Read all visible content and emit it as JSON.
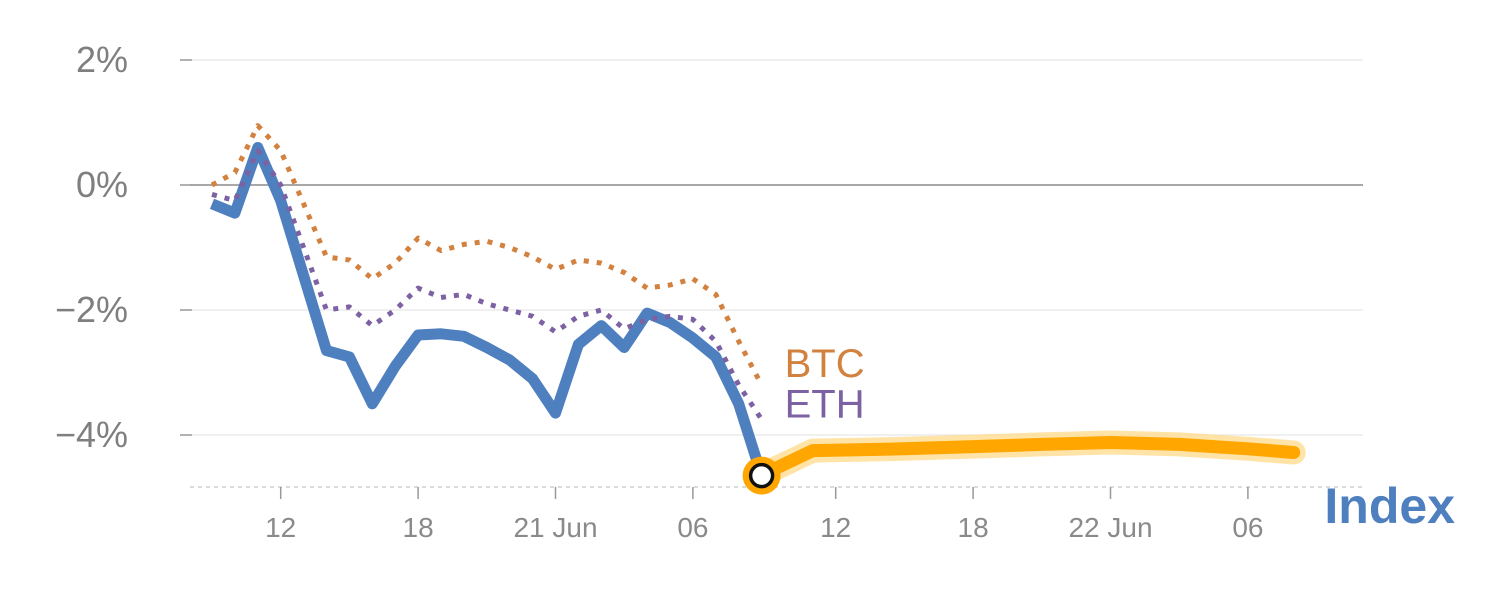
{
  "chart_data": {
    "type": "line",
    "title": "",
    "xlabel": "",
    "ylabel": "",
    "ylim": [
      -4.8,
      2.0
    ],
    "y_ticks": [
      {
        "value": 2,
        "label": "2%"
      },
      {
        "value": 0,
        "label": "0%"
      },
      {
        "value": -2,
        "label": "−2%"
      },
      {
        "value": -4,
        "label": "−4%"
      }
    ],
    "x_ticks": [
      {
        "label": "12",
        "segment": "past",
        "day": 3
      },
      {
        "label": "18",
        "segment": "past",
        "day": 9
      },
      {
        "label": "21 Jun",
        "segment": "past",
        "day": 15
      },
      {
        "label": "06",
        "segment": "past",
        "day": 21
      },
      {
        "label": "12",
        "segment": "forecast",
        "day": 3
      },
      {
        "label": "18",
        "segment": "forecast",
        "day": 9
      },
      {
        "label": "22 Jun",
        "segment": "forecast",
        "day": 15
      },
      {
        "label": "06",
        "segment": "forecast",
        "day": 21
      }
    ],
    "grid": true,
    "zero_line": true,
    "colors": {
      "Index": "#4e7fbf",
      "BTC": "#d2813f",
      "ETH": "#7d62a3",
      "forecast": "#ffa600",
      "forecast_band": "#ffd98a",
      "grid": "#e6e6e6",
      "zero": "#8c8c8c"
    },
    "series": [
      {
        "name": "Index",
        "label": "Index",
        "segment": "past",
        "style": "solid",
        "points": [
          [
            0,
            -0.3
          ],
          [
            1,
            -0.45
          ],
          [
            2,
            0.6
          ],
          [
            3,
            -0.25
          ],
          [
            4,
            -1.45
          ],
          [
            5,
            -2.65
          ],
          [
            6,
            -2.75
          ],
          [
            7,
            -3.5
          ],
          [
            8,
            -2.9
          ],
          [
            9,
            -2.4
          ],
          [
            10,
            -2.38
          ],
          [
            11,
            -2.42
          ],
          [
            12,
            -2.6
          ],
          [
            13,
            -2.8
          ],
          [
            14,
            -3.1
          ],
          [
            15,
            -3.65
          ],
          [
            16,
            -2.55
          ],
          [
            17,
            -2.25
          ],
          [
            18,
            -2.6
          ],
          [
            19,
            -2.05
          ],
          [
            20,
            -2.2
          ],
          [
            21,
            -2.45
          ],
          [
            22,
            -2.75
          ],
          [
            23,
            -3.5
          ],
          [
            24,
            -4.65
          ]
        ]
      },
      {
        "name": "BTC",
        "label": "BTC",
        "segment": "past",
        "style": "dotted",
        "points": [
          [
            0,
            0.0
          ],
          [
            1,
            0.2
          ],
          [
            2,
            0.95
          ],
          [
            3,
            0.55
          ],
          [
            4,
            -0.3
          ],
          [
            5,
            -1.15
          ],
          [
            6,
            -1.2
          ],
          [
            7,
            -1.5
          ],
          [
            8,
            -1.25
          ],
          [
            9,
            -0.85
          ],
          [
            10,
            -1.05
          ],
          [
            11,
            -0.95
          ],
          [
            12,
            -0.9
          ],
          [
            13,
            -1.0
          ],
          [
            14,
            -1.15
          ],
          [
            15,
            -1.35
          ],
          [
            16,
            -1.2
          ],
          [
            17,
            -1.25
          ],
          [
            18,
            -1.4
          ],
          [
            19,
            -1.65
          ],
          [
            20,
            -1.6
          ],
          [
            21,
            -1.5
          ],
          [
            22,
            -1.75
          ],
          [
            23,
            -2.5
          ],
          [
            24,
            -3.2
          ]
        ]
      },
      {
        "name": "ETH",
        "label": "ETH",
        "segment": "past",
        "style": "dotted",
        "points": [
          [
            0,
            -0.15
          ],
          [
            1,
            -0.25
          ],
          [
            2,
            0.55
          ],
          [
            3,
            0.0
          ],
          [
            4,
            -1.0
          ],
          [
            5,
            -2.0
          ],
          [
            6,
            -1.95
          ],
          [
            7,
            -2.25
          ],
          [
            8,
            -2.0
          ],
          [
            9,
            -1.65
          ],
          [
            10,
            -1.8
          ],
          [
            11,
            -1.75
          ],
          [
            12,
            -1.9
          ],
          [
            13,
            -2.0
          ],
          [
            14,
            -2.1
          ],
          [
            15,
            -2.35
          ],
          [
            16,
            -2.1
          ],
          [
            17,
            -2.0
          ],
          [
            18,
            -2.3
          ],
          [
            19,
            -2.15
          ],
          [
            20,
            -2.1
          ],
          [
            21,
            -2.15
          ],
          [
            22,
            -2.5
          ],
          [
            23,
            -3.2
          ],
          [
            24,
            -3.75
          ]
        ]
      },
      {
        "name": "Index forecast",
        "segment": "forecast",
        "style": "band",
        "points": [
          [
            0,
            -4.6
          ],
          [
            2,
            -4.25
          ],
          [
            6,
            -4.22
          ],
          [
            12,
            -4.15
          ],
          [
            15,
            -4.12
          ],
          [
            18,
            -4.15
          ],
          [
            21,
            -4.22
          ],
          [
            23,
            -4.28
          ]
        ]
      }
    ],
    "marker": {
      "segment": "past",
      "day": 24,
      "value": -4.65
    }
  }
}
